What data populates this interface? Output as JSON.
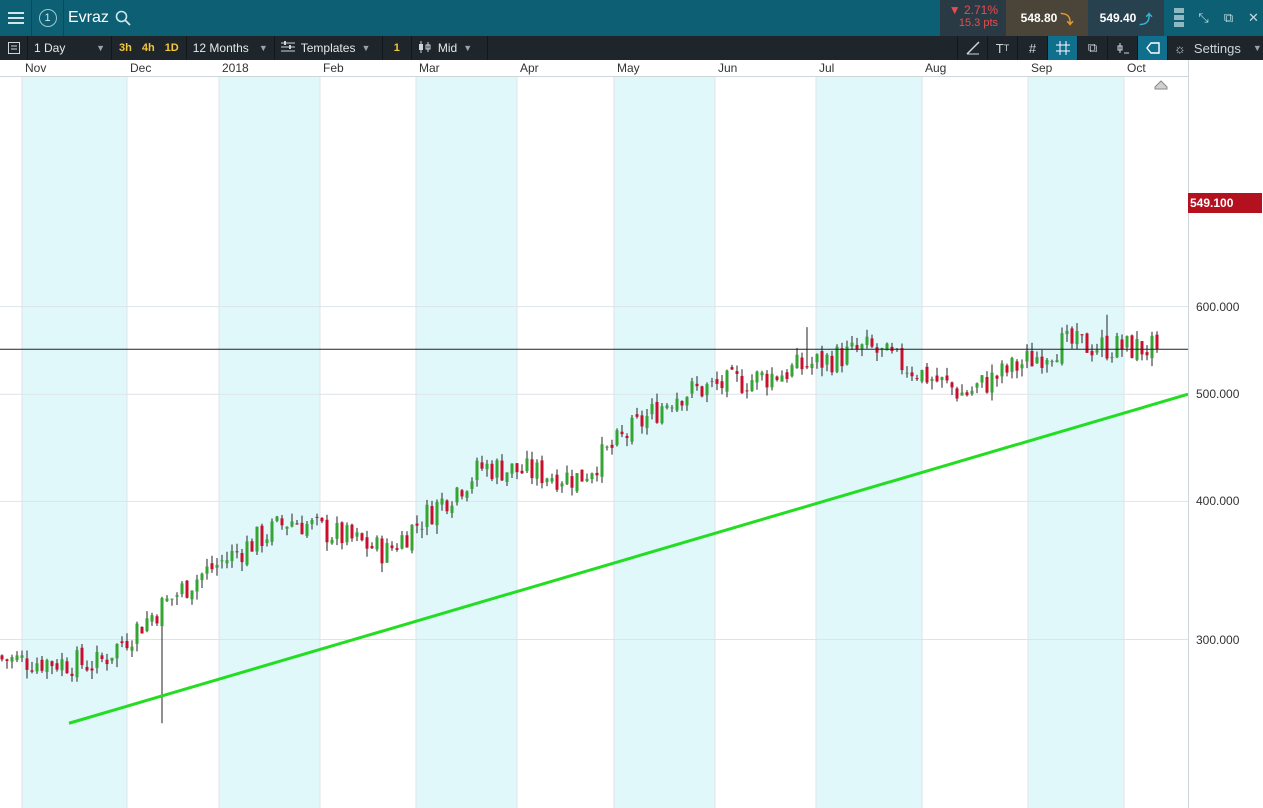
{
  "header": {
    "symbol": "Evraz",
    "workspace_number": "1",
    "change_pct": "2.71%",
    "change_pts": "15.3 pts",
    "sell_price": "548.80",
    "buy_price": "549.40"
  },
  "toolbar": {
    "interval": "1 Day",
    "quick_intervals": [
      "3h",
      "4h",
      "1D"
    ],
    "range": "12 Months",
    "templates_label": "Templates",
    "indicator_count": "1",
    "price_type": "Mid",
    "settings_label": "Settings"
  },
  "colors": {
    "up": "#33a532",
    "down": "#c8102e",
    "trendline": "#22dd22",
    "shade": "#e0f8fa",
    "current_price_bg": "#b3111e"
  },
  "chart_data": {
    "type": "candlestick",
    "title": "Evraz",
    "interval": "1 Day",
    "x_labels": [
      "Nov",
      "Dec",
      "2018",
      "Feb",
      "Mar",
      "Apr",
      "May",
      "Jun",
      "Jul",
      "Aug",
      "Sep",
      "Oct"
    ],
    "y_ticks": [
      "300.000",
      "400.000",
      "500.000",
      "600.000"
    ],
    "current_price": "549.100",
    "y_range": [
      250,
      630
    ],
    "log_scale": true,
    "grid": true,
    "shaded_alternate_months": true,
    "trendline": {
      "from": {
        "date": "2017-11-14",
        "price": 252
      },
      "to": {
        "date": "2018-10-18",
        "price": 500
      }
    },
    "approx_closes": [
      {
        "month": "Nov",
        "low": 255,
        "high": 302,
        "close": 285
      },
      {
        "month": "Dec",
        "low": 285,
        "high": 345,
        "close": 340
      },
      {
        "month": "2018",
        "low": 345,
        "high": 397,
        "close": 385
      },
      {
        "month": "Feb",
        "low": 335,
        "high": 397,
        "close": 360
      },
      {
        "month": "Mar",
        "low": 410,
        "high": 460,
        "close": 430
      },
      {
        "month": "Apr",
        "low": 358,
        "high": 470,
        "close": 420
      },
      {
        "month": "May",
        "low": 420,
        "high": 520,
        "close": 500
      },
      {
        "month": "Jun",
        "low": 495,
        "high": 575,
        "close": 520
      },
      {
        "month": "Jul",
        "low": 485,
        "high": 555,
        "close": 550
      },
      {
        "month": "Aug",
        "low": 455,
        "high": 565,
        "close": 500
      },
      {
        "month": "Sep",
        "low": 462,
        "high": 560,
        "close": 555
      },
      {
        "month": "Oct",
        "low": 540,
        "high": 590,
        "close": 549.1
      }
    ]
  }
}
